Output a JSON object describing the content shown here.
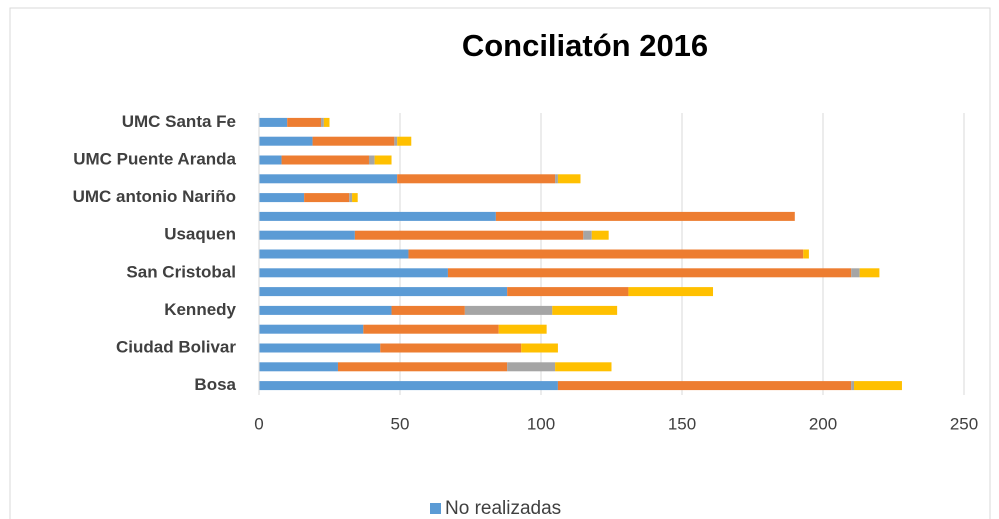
{
  "chart_data": {
    "type": "bar",
    "orientation": "horizontal",
    "stacked": true,
    "title": "Conciliatón 2016",
    "categories": [
      "Bosa",
      null,
      "Ciudad Bolivar",
      null,
      "Kennedy",
      null,
      "San Cristobal",
      null,
      "Usaquen",
      null,
      "UMC antonio Nariño",
      null,
      "UMC Puente Aranda",
      null,
      "UMC Santa Fe"
    ],
    "series": [
      {
        "name": "No realizadas",
        "color": "#5b9bd5",
        "values": [
          106,
          28,
          43,
          37,
          47,
          88,
          67,
          53,
          34,
          84,
          16,
          49,
          8,
          19,
          10
        ]
      },
      {
        "color": "#ed7d31",
        "values": [
          104,
          60,
          50,
          48,
          26,
          43,
          143,
          140,
          81,
          106,
          16,
          56,
          31,
          29,
          12
        ]
      },
      {
        "color": "#a5a5a5",
        "values": [
          1,
          17,
          0,
          0,
          31,
          0,
          3,
          0,
          3,
          0,
          1,
          1,
          2,
          1,
          1
        ]
      },
      {
        "color": "#ffc000",
        "values": [
          17,
          20,
          13,
          17,
          23,
          30,
          7,
          2,
          6,
          0,
          2,
          8,
          6,
          5,
          2
        ]
      }
    ],
    "xlim": [
      0,
      250
    ],
    "xticks": [
      0,
      50,
      100,
      150,
      200,
      250
    ],
    "grid": true,
    "legend": "bottom"
  }
}
